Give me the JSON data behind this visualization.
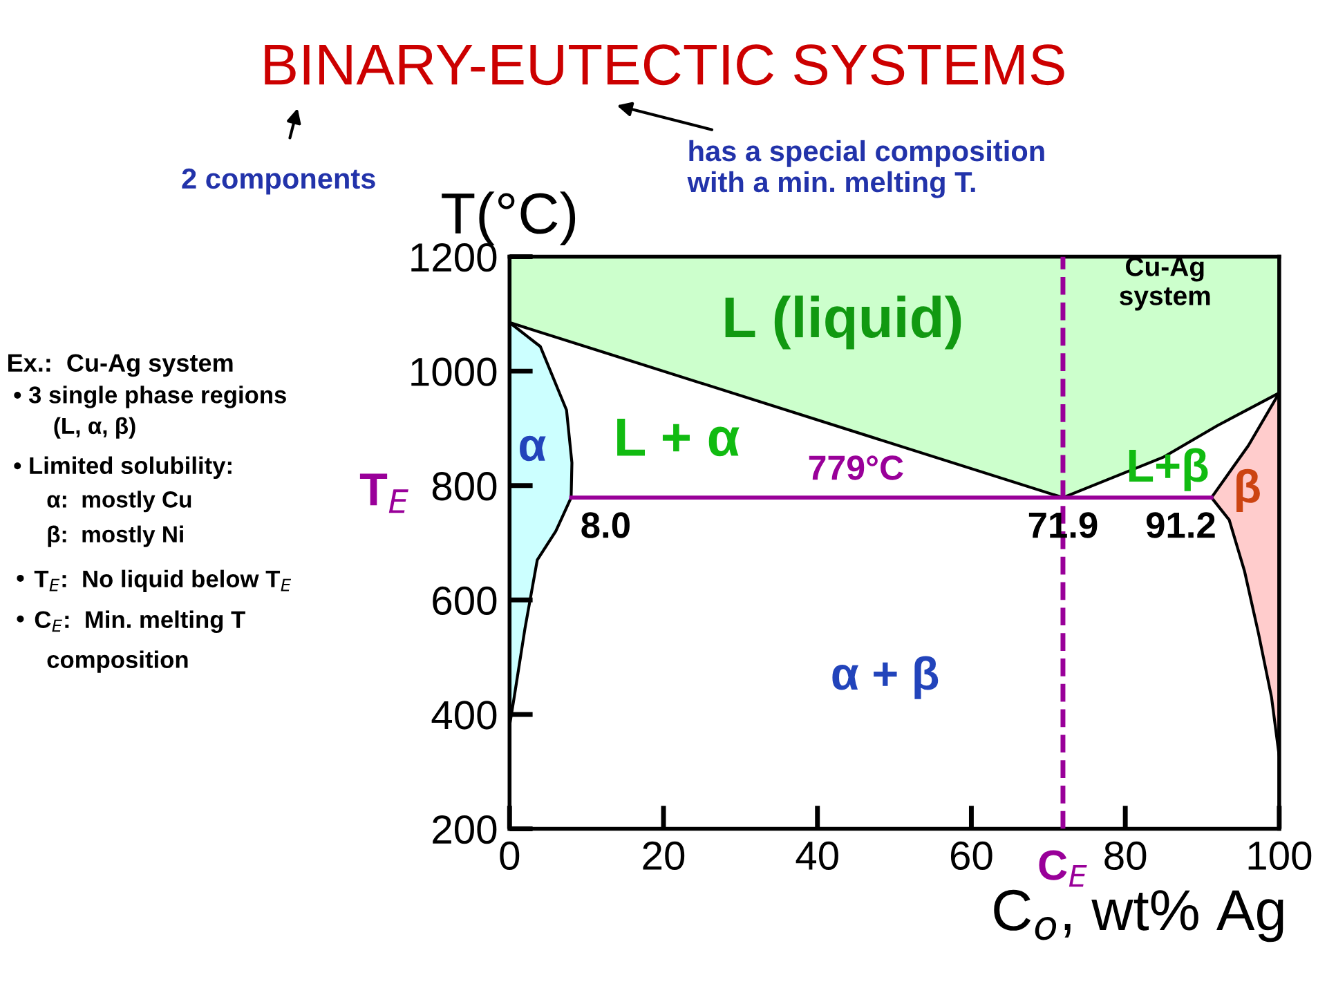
{
  "chart_data": {
    "type": "line",
    "title": "BINARY-EUTECTIC SYSTEMS",
    "xlabel": "C$_{o}$, wt% Ag",
    "ylabel": "T(°C)",
    "xlim": [
      0,
      100
    ],
    "ylim": [
      200,
      1200
    ],
    "xticks": [
      0,
      20,
      40,
      60,
      80,
      100
    ],
    "yticks": [
      200,
      400,
      600,
      800,
      1000,
      1200
    ],
    "grid": false,
    "legend": false,
    "marker": "none",
    "series": [
      {
        "type": "area",
        "color": "#ccffcc",
        "x": [
          0,
          71.9,
          85,
          92,
          100,
          100,
          0
        ],
        "values": [
          1085,
          779,
          850,
          905,
          962,
          1200,
          1200
        ]
      },
      {
        "type": "area",
        "color": "#ccffff",
        "x": [
          0,
          4.0,
          7.4,
          8.1,
          8.0,
          6,
          3.6,
          2,
          0.6,
          0
        ],
        "values": [
          1085,
          1043,
          932,
          840,
          779,
          720,
          670,
          550,
          430,
          380
        ]
      },
      {
        "type": "area",
        "color": "#ffcccc",
        "x": [
          100,
          96,
          91.2,
          93.5,
          95.5,
          97.3,
          99,
          100
        ],
        "values": [
          962,
          870,
          779,
          740,
          650,
          542,
          430,
          327
        ]
      },
      {
        "color": "#990099",
        "x": [
          8.0,
          91.2
        ],
        "values": [
          779,
          779
        ]
      }
    ],
    "ref_lines": [
      {
        "axis": "x",
        "value": 71.9,
        "label": "C$_{E}$",
        "color": "#990099",
        "line_style": "dashed"
      }
    ],
    "annotations": [
      "2 components",
      "has a special composition\nwith a min. melting T.",
      "Ex.:  Cu-Ag system",
      "• 3 single phase regions",
      "(L, α, β)",
      "• Limited solubility:",
      "α:  mostly Cu",
      "β:  mostly Ni",
      "• T$_{E}$:  No liquid below T$_{E}$",
      "• C$_{E}$:  Min. melting T",
      "composition",
      "T$_{E}$",
      "L (liquid)",
      "L + α",
      "α",
      "L+β",
      "β",
      "α + β",
      "Cu-Ag\nsystem",
      {
        "text": "779°C",
        "x": 45,
        "y": 779
      },
      {
        "text": "8.0",
        "x": 8.0,
        "y": 779
      },
      {
        "text": "71.9",
        "x": 71.9,
        "y": 779
      },
      {
        "text": "91.2",
        "x": 91.2,
        "y": 779
      }
    ]
  }
}
